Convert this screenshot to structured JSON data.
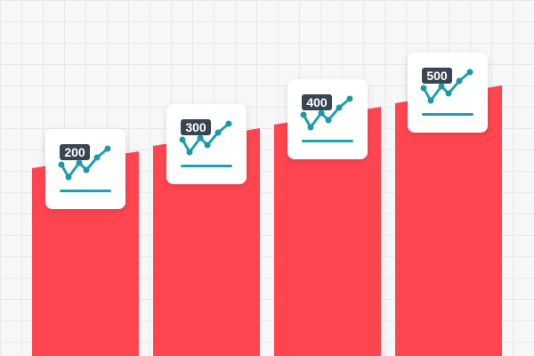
{
  "colors": {
    "background": "#f7f7f8",
    "grid": "#e8e8ec",
    "bar": "#ff4650",
    "card": "#ffffff",
    "label_bg": "#3b4452",
    "label_text": "#ffffff",
    "trend_line": "#1aa3ad",
    "trend_dots": "#1b9aa5"
  },
  "icon": "trend-chart-card-icon",
  "cards": [
    {
      "label": "200"
    },
    {
      "label": "300"
    },
    {
      "label": "400"
    },
    {
      "label": "500"
    }
  ]
}
